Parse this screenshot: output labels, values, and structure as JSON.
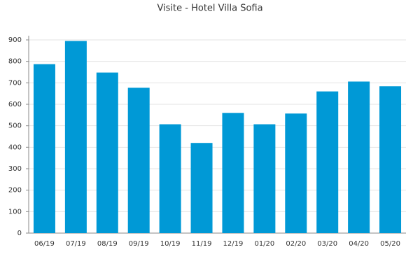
{
  "chart_data": {
    "type": "bar",
    "title": "Visite - Hotel Villa Sofia",
    "categories": [
      "06/19",
      "07/19",
      "08/19",
      "09/19",
      "10/19",
      "11/19",
      "12/19",
      "01/20",
      "02/20",
      "03/20",
      "04/20",
      "05/20"
    ],
    "values": [
      787,
      895,
      748,
      677,
      507,
      420,
      560,
      507,
      557,
      660,
      706,
      684
    ],
    "color": "#0099d6",
    "ylim": [
      0,
      900
    ],
    "yticks": [
      0,
      100,
      200,
      300,
      400,
      500,
      600,
      700,
      800,
      900
    ],
    "grid": true
  }
}
